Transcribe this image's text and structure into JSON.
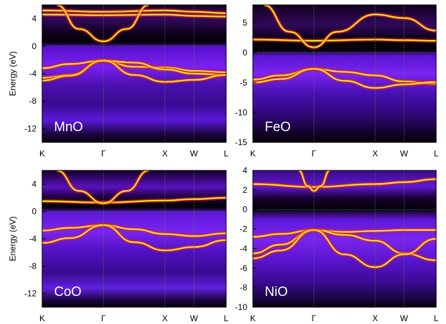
{
  "chart_data": [
    {
      "type": "heatmap",
      "label": "MnO",
      "ylabel": "Energy (eV)",
      "ylim": [
        -14,
        6
      ],
      "yticks": [
        4,
        0,
        -4,
        -8,
        -12
      ],
      "k_points": [
        "K",
        "Γ",
        "X",
        "W",
        "L"
      ],
      "k_positions": [
        0,
        0.333,
        0.667,
        0.825,
        1.0
      ],
      "fermi_level": 0,
      "grid": "dotted green at high-symmetry points and E=0",
      "bands": [
        {
          "k": [
            0,
            0.15,
            0.333,
            0.5,
            0.667,
            0.825,
            1.0
          ],
          "E": [
            -4.6,
            -4.2,
            -2.1,
            -3.0,
            -3.1,
            -3.6,
            -3.8
          ]
        },
        {
          "k": [
            0,
            0.15,
            0.333,
            0.5,
            0.667,
            0.825,
            1.0
          ],
          "E": [
            -3.2,
            -2.6,
            -2.1,
            -2.4,
            -3.4,
            -4.0,
            -4.2
          ]
        },
        {
          "k": [
            0,
            0.15,
            0.333,
            0.5,
            0.667,
            0.825,
            1.0
          ],
          "E": [
            -5.0,
            -4.3,
            -2.1,
            -4.2,
            -5.2,
            -4.9,
            -4.2
          ]
        },
        {
          "k": [
            0,
            0.333,
            0.667,
            0.825,
            1.0
          ],
          "E": [
            4.6,
            4.5,
            4.6,
            4.4,
            4.3
          ]
        },
        {
          "k": [
            0,
            0.333,
            0.667,
            0.825,
            1.0
          ],
          "E": [
            5.2,
            5.0,
            5.2,
            5.0,
            4.8
          ]
        },
        {
          "k": [
            0.08,
            0.2,
            0.333,
            0.46,
            0.58
          ],
          "E": [
            6.0,
            2.5,
            0.7,
            2.5,
            6.0
          ]
        }
      ]
    },
    {
      "type": "heatmap",
      "label": "FeO",
      "ylabel": "",
      "ylim": [
        -15,
        8
      ],
      "yticks": [
        5,
        0,
        -5,
        -10,
        -15
      ],
      "k_points": [
        "K",
        "Γ",
        "X",
        "W",
        "L"
      ],
      "k_positions": [
        0,
        0.333,
        0.667,
        0.825,
        1.0
      ],
      "fermi_level": 0,
      "grid": "dotted green at high-symmetry points and E=0",
      "bands": [
        {
          "k": [
            0,
            0.15,
            0.333,
            0.5,
            0.667,
            0.825,
            1.0
          ],
          "E": [
            -4.5,
            -3.8,
            -2.7,
            -3.2,
            -3.8,
            -4.8,
            -5.2
          ]
        },
        {
          "k": [
            0,
            0.15,
            0.333,
            0.5,
            0.667,
            0.825,
            1.0
          ],
          "E": [
            -5.0,
            -4.4,
            -2.7,
            -4.7,
            -5.9,
            -5.3,
            -4.9
          ]
        },
        {
          "k": [
            0,
            0.333,
            0.667,
            0.825,
            1.0
          ],
          "E": [
            2.2,
            2.0,
            2.2,
            2.1,
            2.0
          ]
        },
        {
          "k": [
            0.06,
            0.2,
            0.333,
            0.46,
            0.667,
            0.825,
            1.0
          ],
          "E": [
            8.0,
            3.5,
            0.9,
            3.5,
            6.4,
            5.8,
            3.7
          ]
        }
      ]
    },
    {
      "type": "heatmap",
      "label": "CoO",
      "ylabel": "Energy (eV)",
      "ylim": [
        -14,
        6
      ],
      "yticks": [
        4,
        0,
        -4,
        -8,
        -12
      ],
      "k_points": [
        "K",
        "Γ",
        "X",
        "W",
        "L"
      ],
      "k_positions": [
        0,
        0.333,
        0.667,
        0.825,
        1.0
      ],
      "fermi_level": 0,
      "grid": "dotted green at high-symmetry points and E=0",
      "bands": [
        {
          "k": [
            0,
            0.15,
            0.333,
            0.5,
            0.667,
            0.825,
            1.0
          ],
          "E": [
            -2.8,
            -2.4,
            -2.0,
            -2.6,
            -3.3,
            -3.6,
            -3.2
          ]
        },
        {
          "k": [
            0,
            0.15,
            0.333,
            0.5,
            0.667,
            0.825,
            1.0
          ],
          "E": [
            -4.6,
            -3.9,
            -2.0,
            -4.5,
            -5.7,
            -5.2,
            -4.2
          ]
        },
        {
          "k": [
            0,
            0.333,
            0.667,
            0.825,
            1.0
          ],
          "E": [
            1.5,
            1.3,
            1.6,
            1.8,
            2.0
          ]
        },
        {
          "k": [
            0.08,
            0.2,
            0.333,
            0.46,
            0.58
          ],
          "E": [
            6.0,
            3.0,
            1.2,
            3.0,
            6.0
          ]
        }
      ]
    },
    {
      "type": "heatmap",
      "label": "NiO",
      "ylabel": "",
      "ylim": [
        -10,
        4
      ],
      "yticks": [
        4,
        2,
        0,
        -2,
        -4,
        -6,
        -8,
        -10
      ],
      "k_points": [
        "K",
        "Γ",
        "X",
        "W",
        "L"
      ],
      "k_positions": [
        0,
        0.333,
        0.667,
        0.825,
        1.0
      ],
      "fermi_level": 0,
      "grid": "dotted green at high-symmetry points and E=0",
      "bands": [
        {
          "k": [
            0,
            0.15,
            0.333,
            0.5,
            0.667,
            0.825,
            1.0
          ],
          "E": [
            -2.8,
            -2.5,
            -2.1,
            -2.3,
            -2.2,
            -2.1,
            -2.1
          ]
        },
        {
          "k": [
            0,
            0.15,
            0.333,
            0.5,
            0.667,
            0.825,
            1.0
          ],
          "E": [
            -4.5,
            -3.6,
            -2.1,
            -2.6,
            -3.2,
            -4.5,
            -5.2
          ]
        },
        {
          "k": [
            0,
            0.15,
            0.333,
            0.5,
            0.667,
            0.825,
            1.0
          ],
          "E": [
            -5.0,
            -4.2,
            -2.1,
            -4.6,
            -5.9,
            -4.6,
            -3.0
          ]
        },
        {
          "k": [
            0,
            0.333,
            0.667,
            0.825,
            1.0
          ],
          "E": [
            2.6,
            2.3,
            2.6,
            2.8,
            3.1
          ]
        },
        {
          "k": [
            0.25,
            0.3,
            0.333,
            0.37,
            0.42
          ],
          "E": [
            4.0,
            2.4,
            1.9,
            2.4,
            4.0
          ]
        }
      ]
    }
  ]
}
